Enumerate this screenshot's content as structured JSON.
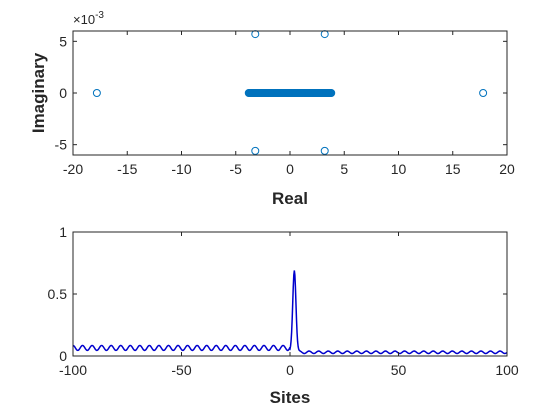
{
  "colors": {
    "marker": "#0072BD",
    "line": "#0000CD",
    "axis": "#262626"
  },
  "chart_data": [
    {
      "type": "scatter",
      "xlabel": "Real",
      "ylabel": "Imaginary",
      "y_exponent_label": "×10",
      "y_exponent_power": "-3",
      "xlim": [
        -20,
        20
      ],
      "ylim": [
        -6,
        6
      ],
      "xticks": [
        -20,
        -15,
        -10,
        -5,
        0,
        5,
        10,
        15,
        20
      ],
      "xtick_labels": [
        "-20",
        "-15",
        "-10",
        "-5",
        "0",
        "5",
        "10",
        "15",
        "20"
      ],
      "yticks": [
        -5,
        0,
        5
      ],
      "ytick_labels": [
        "-5",
        "0",
        "5"
      ],
      "grid": false,
      "marker": "circle-open",
      "points": [
        {
          "x": -17.8,
          "y": 0
        },
        {
          "x": 17.8,
          "y": 0
        },
        {
          "x": -3.2,
          "y": 5.7
        },
        {
          "x": 3.2,
          "y": 5.7
        },
        {
          "x": -3.2,
          "y": -5.6
        },
        {
          "x": 3.2,
          "y": -5.6
        }
      ],
      "dense_band": {
        "x_from": -3.8,
        "x_to": 3.8,
        "y": 0,
        "count": 97
      }
    },
    {
      "type": "line",
      "xlabel": "Sites",
      "ylabel": "",
      "xlim": [
        -100,
        100
      ],
      "ylim": [
        0,
        1
      ],
      "xticks": [
        -100,
        -50,
        0,
        50,
        100
      ],
      "xtick_labels": [
        "-100",
        "-50",
        "0",
        "50",
        "100"
      ],
      "yticks": [
        0,
        0.5,
        1
      ],
      "ytick_labels": [
        "0",
        "0.5",
        "1"
      ],
      "grid": false,
      "peak": {
        "x": 2,
        "y": 0.69
      },
      "left_baseline": 0.065,
      "left_ripple_amplitude": 0.02,
      "right_baseline": 0.03,
      "right_ripple_amplitude": 0.01,
      "ripple_period": 4.4
    }
  ]
}
